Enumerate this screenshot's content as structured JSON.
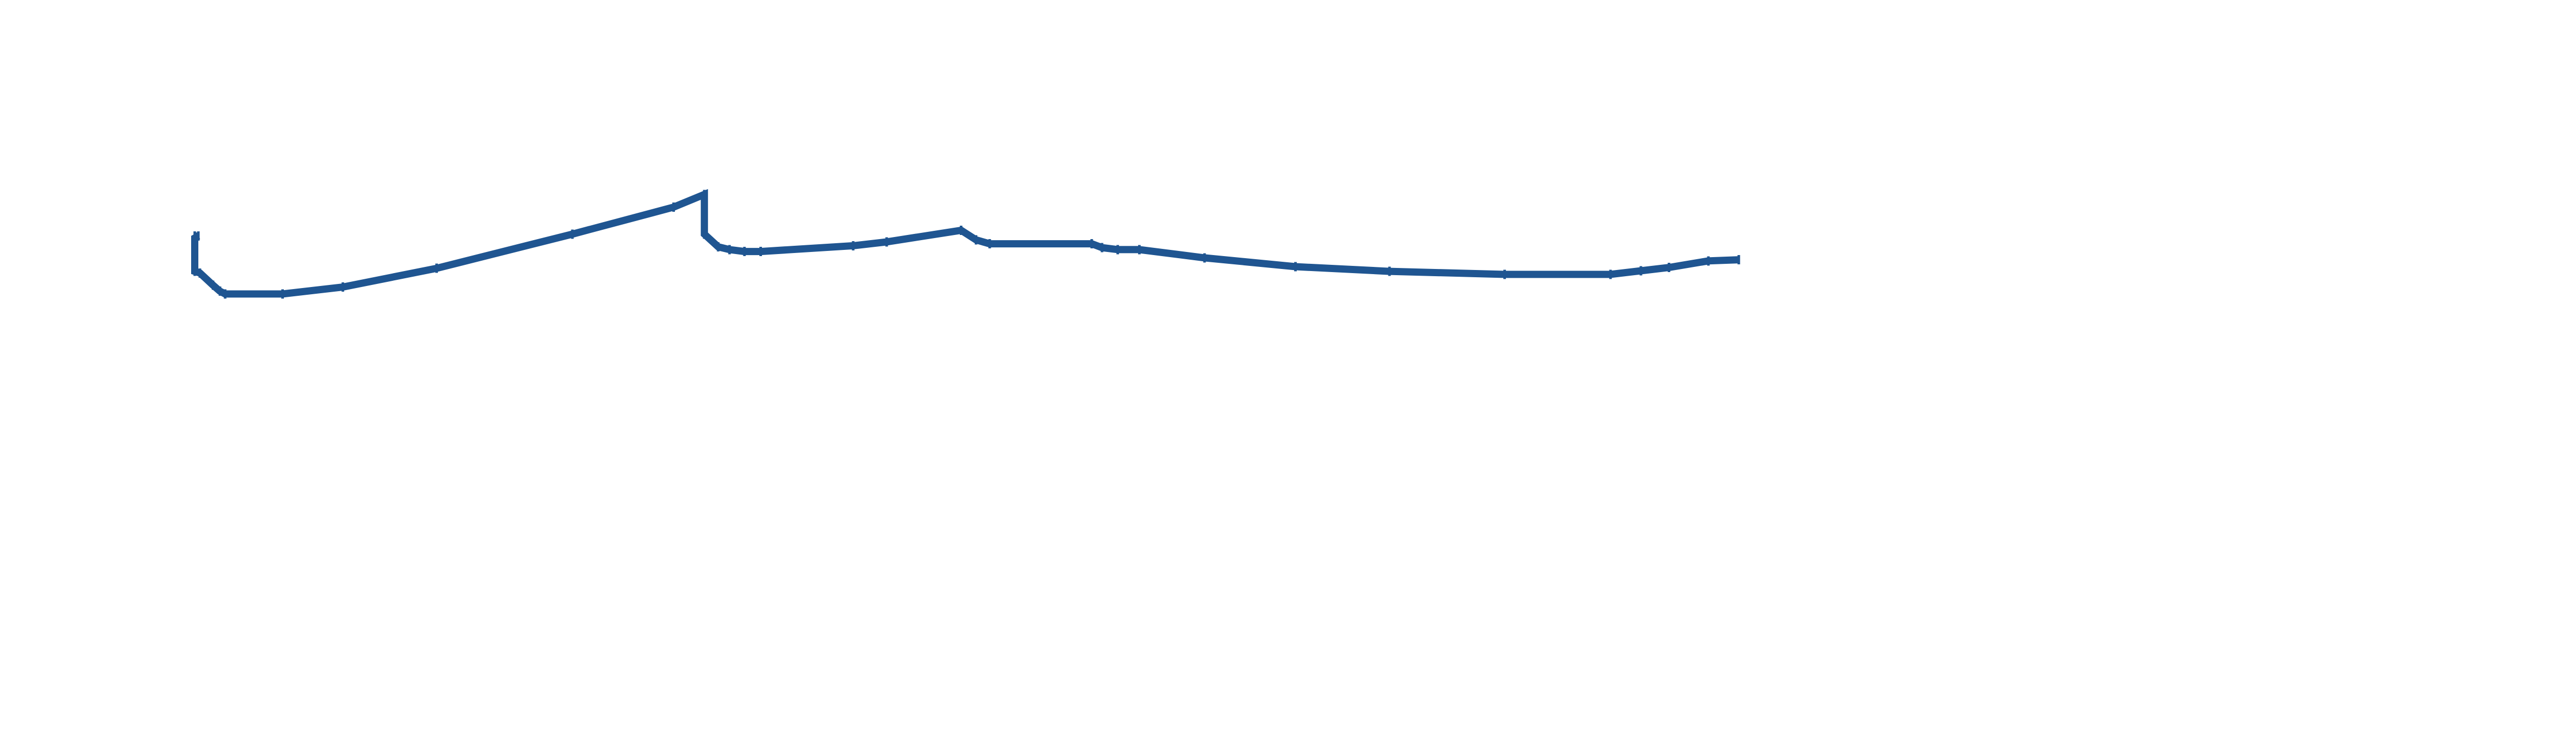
{
  "chart_data": {
    "type": "line",
    "title": "",
    "xlabel": "",
    "ylabel": "",
    "grid": false,
    "legend": "none",
    "axes_visible": false,
    "xlim": [
      0,
      1000
    ],
    "ylim": [
      0,
      1000
    ],
    "series": [
      {
        "color": "#1f5591",
        "points": [
          [
            0.0,
            639
          ],
          [
            2.0,
            639
          ],
          [
            0.0,
            632
          ],
          [
            0.0,
            511
          ],
          [
            2.9,
            505
          ],
          [
            10.3,
            461
          ],
          [
            14.2,
            439
          ],
          [
            17.2,
            429
          ],
          [
            49.6,
            429
          ],
          [
            83.6,
            454
          ],
          [
            136.6,
            522
          ],
          [
            213.2,
            646
          ],
          [
            270.4,
            744
          ],
          [
            287.8,
            790
          ],
          [
            287.8,
            771
          ],
          [
            287.8,
            646
          ],
          [
            295.6,
            600
          ],
          [
            302.0,
            590
          ],
          [
            310.4,
            583
          ],
          [
            319.6,
            583
          ],
          [
            371.8,
            604
          ],
          [
            390.8,
            618
          ],
          [
            432.8,
            660
          ],
          [
            441.3,
            625
          ],
          [
            448.9,
            611
          ],
          [
            506.6,
            611
          ],
          [
            512.4,
            597
          ],
          [
            521.3,
            590
          ],
          [
            533.4,
            590
          ],
          [
            570.2,
            560
          ],
          [
            621.6,
            528
          ],
          [
            674.7,
            511
          ],
          [
            739.7,
            500
          ],
          [
            799.5,
            500
          ],
          [
            816.7,
            513
          ],
          [
            832.6,
            525
          ],
          [
            854.8,
            549
          ],
          [
            872.0,
            553
          ]
        ]
      }
    ]
  }
}
